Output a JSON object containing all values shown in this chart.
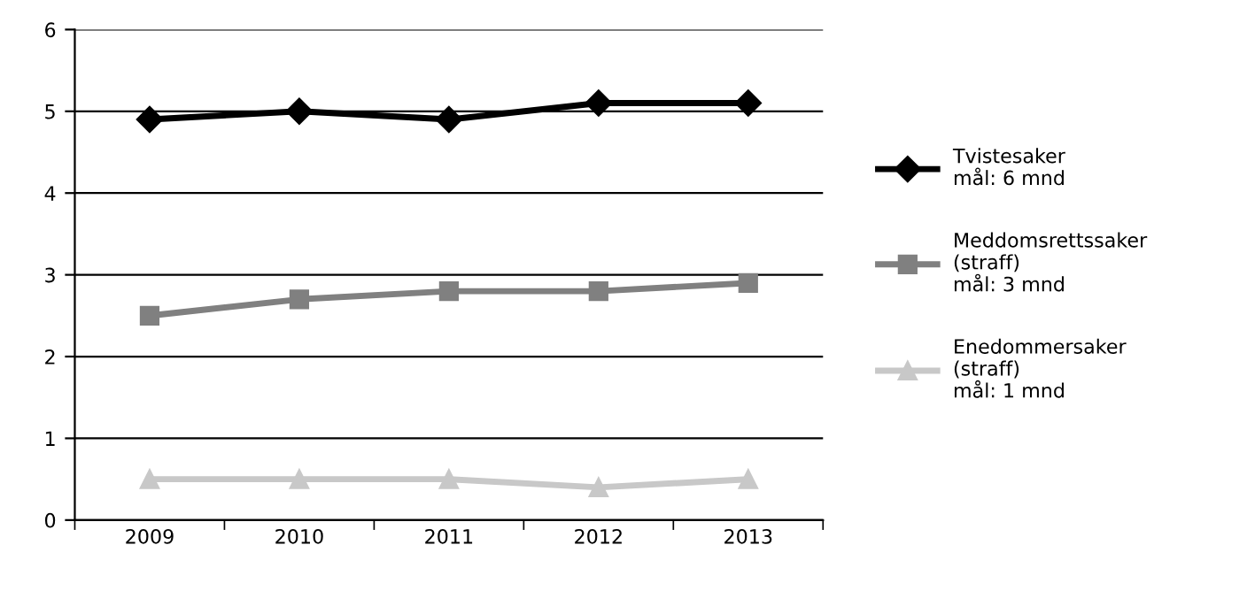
{
  "chart_data": {
    "type": "line",
    "categories": [
      "2009",
      "2010",
      "2011",
      "2012",
      "2013"
    ],
    "series": [
      {
        "name": "Tvistesaker\nmål: 6 mnd",
        "color": "#000000",
        "marker": "diamond",
        "values": [
          4.9,
          5.0,
          4.9,
          5.1,
          5.1
        ]
      },
      {
        "name": "Meddomsrettssaker\n(straff)\nmål: 3 mnd",
        "color": "#808080",
        "marker": "square",
        "values": [
          2.5,
          2.7,
          2.8,
          2.8,
          2.9
        ]
      },
      {
        "name": "Enedommersaker\n(straff)\nmål: 1 mnd",
        "color": "#c8c8c8",
        "marker": "triangle",
        "values": [
          0.5,
          0.5,
          0.5,
          0.4,
          0.5
        ]
      }
    ],
    "ylim": [
      0,
      6
    ],
    "yticks": [
      0,
      1,
      2,
      3,
      4,
      5,
      6
    ],
    "grid": "y",
    "legend": "right",
    "line_style": "solid"
  }
}
